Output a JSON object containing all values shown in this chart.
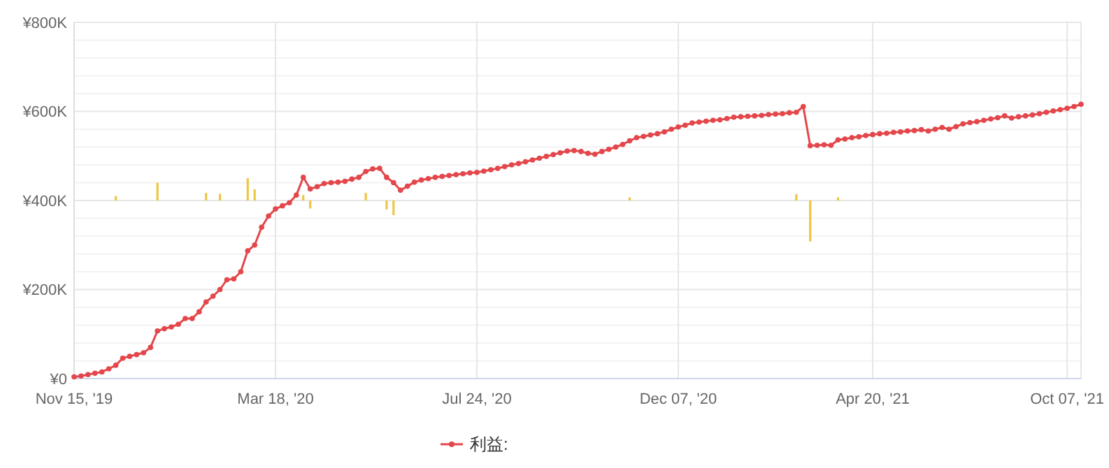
{
  "chart_data": {
    "type": "line",
    "legend": "bottom",
    "grid": true,
    "marker": "circle",
    "line_style": "solid",
    "categories": [
      "Nov 15, '19",
      null,
      null,
      null,
      null,
      null,
      null,
      null,
      null,
      null,
      null,
      null,
      null,
      null,
      null,
      null,
      null,
      null,
      null,
      null,
      null,
      null,
      null,
      null,
      null,
      null,
      null,
      null,
      null,
      "Mar 18, '20",
      null,
      null,
      null,
      null,
      null,
      null,
      null,
      null,
      null,
      null,
      null,
      null,
      null,
      null,
      null,
      null,
      null,
      null,
      null,
      null,
      null,
      null,
      null,
      null,
      null,
      null,
      null,
      null,
      "Jul 24, '20",
      null,
      null,
      null,
      null,
      null,
      null,
      null,
      null,
      null,
      null,
      null,
      null,
      null,
      null,
      null,
      null,
      null,
      null,
      null,
      null,
      null,
      null,
      null,
      null,
      null,
      null,
      null,
      null,
      "Dec 07, '20",
      null,
      null,
      null,
      null,
      null,
      null,
      null,
      null,
      null,
      null,
      null,
      null,
      null,
      null,
      null,
      null,
      null,
      null,
      null,
      null,
      null,
      null,
      null,
      null,
      null,
      null,
      null,
      "Apr 20, '21",
      null,
      null,
      null,
      null,
      null,
      null,
      null,
      null,
      null,
      null,
      null,
      null,
      null,
      null,
      null,
      null,
      null,
      null,
      null,
      null,
      null,
      null,
      null,
      null,
      null,
      null,
      null,
      "Oct 07, '21",
      null,
      null
    ],
    "ylim": [
      0,
      800000
    ],
    "yticks": [
      {
        "value": 0,
        "label": "¥0"
      },
      {
        "value": 40000,
        "label": null
      },
      {
        "value": 80000,
        "label": null
      },
      {
        "value": 120000,
        "label": null
      },
      {
        "value": 160000,
        "label": null
      },
      {
        "value": 200000,
        "label": "¥200K"
      },
      {
        "value": 240000,
        "label": null
      },
      {
        "value": 280000,
        "label": null
      },
      {
        "value": 320000,
        "label": null
      },
      {
        "value": 360000,
        "label": null
      },
      {
        "value": 400000,
        "label": "¥400K"
      },
      {
        "value": 440000,
        "label": null
      },
      {
        "value": 480000,
        "label": null
      },
      {
        "value": 520000,
        "label": null
      },
      {
        "value": 560000,
        "label": null
      },
      {
        "value": 600000,
        "label": "¥600K"
      },
      {
        "value": 640000,
        "label": null
      },
      {
        "value": 680000,
        "label": null
      },
      {
        "value": 720000,
        "label": null
      },
      {
        "value": 760000,
        "label": null
      },
      {
        "value": 800000,
        "label": "¥800K"
      }
    ],
    "series": [
      {
        "type": "bar",
        "color": "#eec643",
        "values": [
          null,
          null,
          null,
          null,
          null,
          null,
          10000,
          null,
          null,
          null,
          null,
          null,
          40000,
          null,
          null,
          null,
          null,
          null,
          null,
          17000,
          null,
          15000,
          null,
          null,
          null,
          50000,
          25000,
          null,
          null,
          null,
          null,
          null,
          null,
          12000,
          -18000,
          null,
          null,
          null,
          null,
          null,
          null,
          null,
          17000,
          null,
          null,
          -20000,
          -33000,
          null,
          null,
          null,
          null,
          null,
          null,
          null,
          null,
          null,
          null,
          null,
          null,
          null,
          null,
          null,
          null,
          null,
          null,
          null,
          null,
          null,
          null,
          null,
          null,
          null,
          null,
          null,
          null,
          null,
          null,
          null,
          null,
          null,
          7000,
          null,
          null,
          null,
          null,
          null,
          null,
          null,
          null,
          null,
          null,
          null,
          null,
          null,
          null,
          null,
          null,
          null,
          null,
          null,
          null,
          null,
          null,
          null,
          14000,
          null,
          -92000,
          null,
          null,
          null,
          7000,
          null,
          null,
          null,
          null,
          null,
          null,
          null,
          null,
          null,
          null,
          null,
          null,
          null,
          null,
          null,
          null,
          null,
          null,
          null,
          null,
          null,
          null,
          null,
          null,
          null,
          null,
          null,
          null,
          null,
          null,
          null,
          null,
          null,
          null,
          null
        ],
        "base": [
          null,
          null,
          null,
          null,
          null,
          null,
          400000,
          null,
          null,
          null,
          null,
          null,
          400000,
          null,
          null,
          null,
          null,
          null,
          null,
          400000,
          null,
          400000,
          null,
          null,
          null,
          400000,
          400000,
          null,
          null,
          null,
          null,
          null,
          null,
          400000,
          400000,
          null,
          null,
          null,
          null,
          null,
          null,
          null,
          400000,
          null,
          null,
          400000,
          400000,
          null,
          null,
          null,
          null,
          null,
          null,
          null,
          null,
          null,
          null,
          null,
          null,
          null,
          null,
          null,
          null,
          null,
          null,
          null,
          null,
          null,
          null,
          null,
          null,
          null,
          null,
          null,
          null,
          null,
          null,
          null,
          null,
          null,
          400000,
          null,
          null,
          null,
          null,
          null,
          null,
          null,
          null,
          null,
          null,
          null,
          null,
          null,
          null,
          null,
          null,
          null,
          null,
          null,
          null,
          null,
          null,
          null,
          400000,
          null,
          400000,
          null,
          null,
          null,
          400000,
          null,
          null,
          null,
          null,
          null,
          null,
          null,
          null,
          null,
          null,
          null,
          null,
          null,
          null,
          null,
          null,
          null,
          null,
          null,
          null,
          null,
          null,
          null,
          null,
          null,
          null,
          null,
          null,
          null,
          null,
          null,
          null,
          null,
          null,
          null
        ]
      },
      {
        "name": "利益:",
        "color": "#e3474b",
        "values": [
          4000,
          6000,
          9000,
          12000,
          15000,
          22000,
          30000,
          46000,
          50000,
          54000,
          58000,
          70000,
          107000,
          112000,
          116000,
          122000,
          135000,
          135000,
          150000,
          172000,
          185000,
          200000,
          222000,
          224000,
          240000,
          287000,
          300000,
          340000,
          365000,
          381000,
          388000,
          395000,
          412000,
          452000,
          426000,
          431000,
          438000,
          440000,
          441000,
          443000,
          448000,
          452000,
          465000,
          471000,
          472000,
          452000,
          440000,
          423000,
          432000,
          441000,
          446000,
          449000,
          452000,
          454000,
          456000,
          458000,
          460000,
          462000,
          463000,
          466000,
          469000,
          472000,
          476000,
          480000,
          483000,
          487000,
          491000,
          495000,
          499000,
          503000,
          507000,
          511000,
          512000,
          510000,
          506000,
          504000,
          510000,
          515000,
          520000,
          526000,
          534000,
          541000,
          544000,
          547000,
          550000,
          554000,
          560000,
          565000,
          569000,
          574000,
          576000,
          578000,
          580000,
          581000,
          584000,
          587000,
          588000,
          589000,
          590000,
          591000,
          593000,
          594000,
          595000,
          597000,
          598000,
          611000,
          523000,
          524000,
          525000,
          524000,
          536000,
          538000,
          541000,
          543000,
          546000,
          548000,
          550000,
          551000,
          553000,
          554000,
          556000,
          557000,
          559000,
          556000,
          560000,
          564000,
          560000,
          566000,
          572000,
          575000,
          577000,
          580000,
          583000,
          586000,
          590000,
          585000,
          588000,
          590000,
          592000,
          595000,
          598000,
          601000,
          604000,
          607000,
          611000,
          616000
        ]
      }
    ]
  }
}
